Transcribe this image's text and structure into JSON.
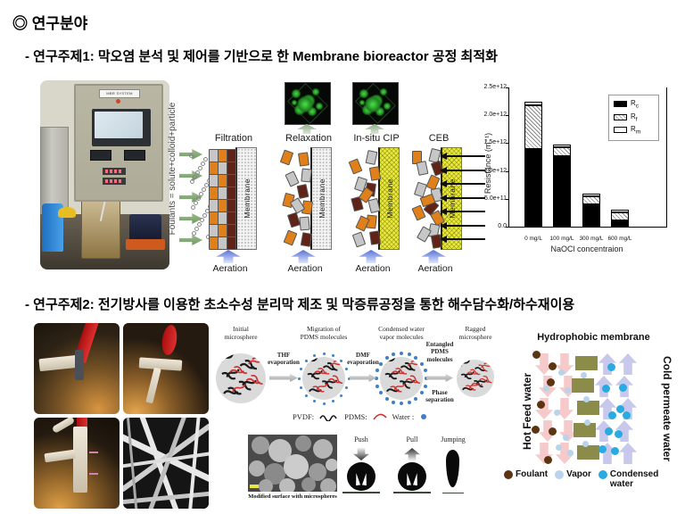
{
  "page": {
    "title": "◎ 연구분야"
  },
  "topic1": {
    "heading": "- 연구주제1: 막오염 분석 및 제어를 기반으로 한 Membrane bioreactor 공정 최적화",
    "photo": {
      "panel_label": "MBR SYSTEM"
    },
    "fouling_diagram": {
      "side_label": "Foulants = solute+colloid+particle",
      "membrane_label": "Membrane",
      "aeration_label": "Aeration",
      "stages": [
        {
          "label": "Filtration",
          "membrane_style": "clean",
          "confocal": false
        },
        {
          "label": "Relaxation",
          "membrane_style": "clean",
          "confocal": true
        },
        {
          "label": "In-situ CIP",
          "membrane_style": "chemical",
          "confocal": true
        },
        {
          "label": "CEB",
          "membrane_style": "chemical",
          "confocal": false
        }
      ]
    }
  },
  "chart_data": {
    "type": "bar",
    "subtype": "stacked",
    "xlabel": "NaOCl concentraion",
    "ylabel": "Resistance (m⁻¹)",
    "categories": [
      "0 mg/L",
      "100 mg/L",
      "300 mg/L",
      "600 mg/L"
    ],
    "series": [
      {
        "name": "Rc",
        "symbol": "R",
        "sub": "c",
        "fill": "black",
        "values": [
          1400000000000.0,
          1270000000000.0,
          400000000000.0,
          120000000000.0
        ]
      },
      {
        "name": "Rf",
        "symbol": "R",
        "sub": "f",
        "fill": "hatch",
        "values": [
          780000000000.0,
          150000000000.0,
          150000000000.0,
          130000000000.0
        ]
      },
      {
        "name": "Rm",
        "symbol": "R",
        "sub": "m",
        "fill": "white",
        "values": [
          70000000000.0,
          60000000000.0,
          50000000000.0,
          50000000000.0
        ]
      }
    ],
    "ylim": [
      0,
      2500000000000.0
    ],
    "yticks": [
      {
        "v": 0,
        "label": "0.0"
      },
      {
        "v": 500000000000.0,
        "label": "5.0e+11"
      },
      {
        "v": 1000000000000.0,
        "label": "1.0e+12"
      },
      {
        "v": 1500000000000.0,
        "label": "1.5e+12"
      },
      {
        "v": 2000000000000.0,
        "label": "2.0e+12"
      },
      {
        "v": 2500000000000.0,
        "label": "2.5e+12"
      }
    ],
    "legend_position": "upper right",
    "grid": false
  },
  "topic2": {
    "heading": "- 연구주제2: 전기방사를 이용한 초소수성 분리막 제조 및 막증류공정을 통한 해수담수화/하수재이용",
    "microsphere_diagram": {
      "steps": [
        {
          "label": "Initial\nmicrosphere"
        },
        {
          "label": "Migration of\nPDMS molecules"
        },
        {
          "label": "Condensed water\nvapor molecules"
        },
        {
          "label": "Ragged\nmicrosphere"
        }
      ],
      "transitions": [
        {
          "top_label": "THF\nevaporation",
          "bottom_label": ""
        },
        {
          "top_label": "DMF\nevaporation",
          "bottom_label": ""
        },
        {
          "top_label": "Entangled\nPDMS\nmolecules",
          "bottom_label": "Phase\nseparation"
        }
      ],
      "legend": [
        {
          "label": "PVDF:",
          "marker": "pvdf-squiggle",
          "color": "#1a1a1a"
        },
        {
          "label": "PDMS:",
          "marker": "pdms-curve",
          "color": "#d32f2f"
        },
        {
          "label": "Water :",
          "marker": "water-dot",
          "color": "#3f7fc8"
        }
      ]
    },
    "sem_caption": "Modified surface with microspheres",
    "droplet_labels": [
      "Push",
      "Pull",
      "Jumping"
    ],
    "md_diagram": {
      "title": "Hydrophobic membrane",
      "left_label": "Hot Feed water",
      "right_label": "Cold permeate water",
      "legend": [
        {
          "label": "Foulant",
          "color": "#5b3512"
        },
        {
          "label": "Vapor",
          "color": "#b9d3ea"
        },
        {
          "label": "Condensed water",
          "color": "#29abe2"
        }
      ],
      "colors": {
        "feed_arrow": "#f6caca",
        "permeate_arrow": "#c7c8ec",
        "membrane_block": "#8b8b4a"
      }
    }
  }
}
